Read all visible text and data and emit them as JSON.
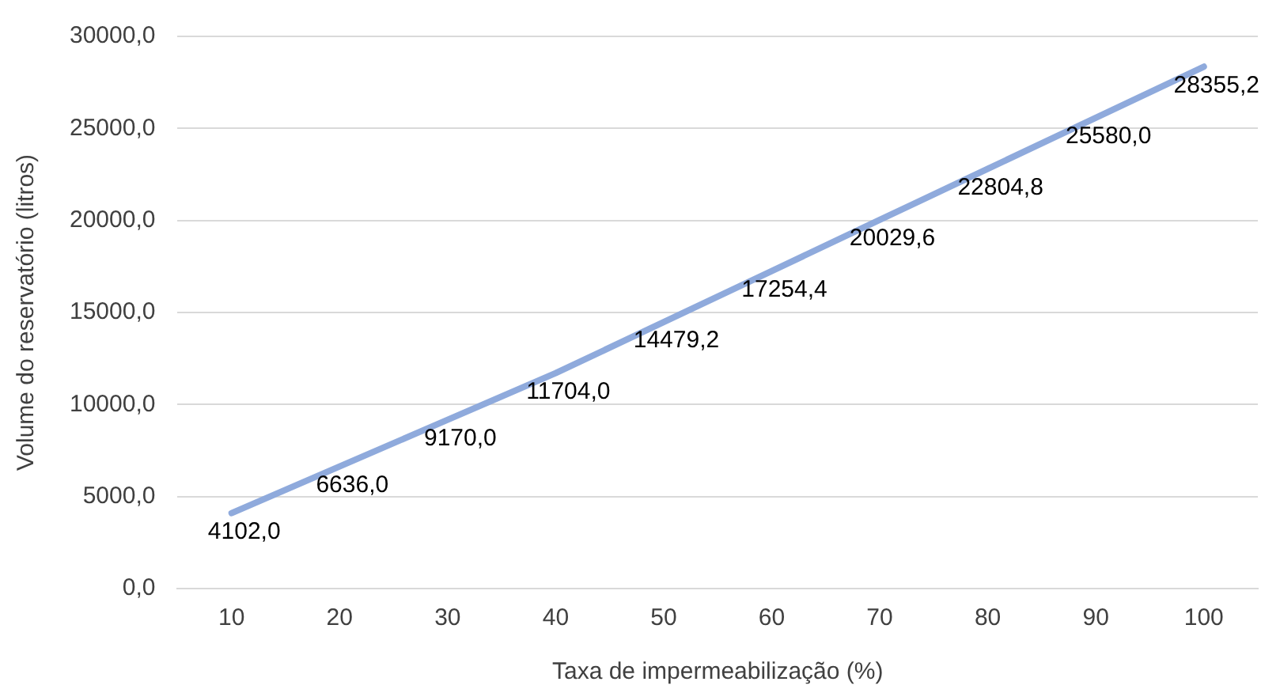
{
  "chart_data": {
    "type": "line",
    "xlabel": "Taxa de impermeabilização (%)",
    "ylabel": "Volume do reservatório (litros)",
    "categories": [
      "10",
      "20",
      "30",
      "40",
      "50",
      "60",
      "70",
      "80",
      "90",
      "100"
    ],
    "series": [
      {
        "color": "#8faadc",
        "values": [
          4102.0,
          6636.0,
          9170.0,
          11704.0,
          14479.2,
          17254.4,
          20029.6,
          22804.8,
          25580.0,
          28355.2
        ],
        "value_labels": [
          "4102,0",
          "6636,0",
          "9170,0",
          "11704,0",
          "14479,2",
          "17254,4",
          "20029,6",
          "22804,8",
          "25580,0",
          "28355,2"
        ]
      }
    ],
    "ylim": [
      0,
      30000
    ],
    "yticks": [
      {
        "value": 0,
        "label": "0,0"
      },
      {
        "value": 5000,
        "label": "5000,0"
      },
      {
        "value": 10000,
        "label": "10000,0"
      },
      {
        "value": 15000,
        "label": "15000,0"
      },
      {
        "value": 20000,
        "label": "20000,0"
      },
      {
        "value": 25000,
        "label": "25000,0"
      },
      {
        "value": 30000,
        "label": "30000,0"
      }
    ],
    "grid": "y",
    "legend": false,
    "marker": "none",
    "line_style": "solid"
  }
}
